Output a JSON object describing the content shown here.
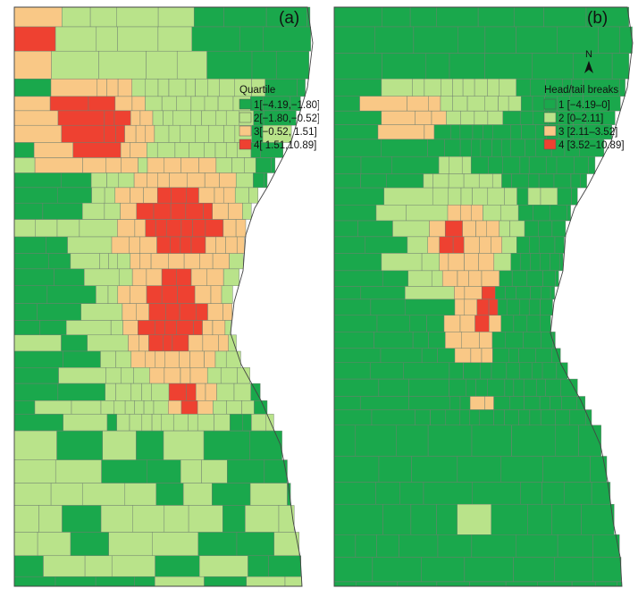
{
  "panels": [
    {
      "label": "(a)",
      "legend_title": "Quartile",
      "classes": [
        {
          "label": "1[−4.19,−1.80]",
          "color": "#1aa84c"
        },
        {
          "label": "2[−1.80,−0.52]",
          "color": "#b9e38a"
        },
        {
          "label": "3[−0.52, 1.51]",
          "color": "#f9c886"
        },
        {
          "label": "4[ 1.51,10.89]",
          "color": "#ee4131"
        }
      ]
    },
    {
      "label": "(b)",
      "legend_title": "Head/tail breaks",
      "north_label": "N",
      "classes": [
        {
          "label": "1 [−4.19–0]",
          "color": "#1aa84c"
        },
        {
          "label": "2 [0–2.11]",
          "color": "#b9e38a"
        },
        {
          "label": "3 [2.11–3.52]",
          "color": "#f9c886"
        },
        {
          "label": "4 [3.52–10.89]",
          "color": "#ee4131"
        }
      ]
    }
  ]
}
